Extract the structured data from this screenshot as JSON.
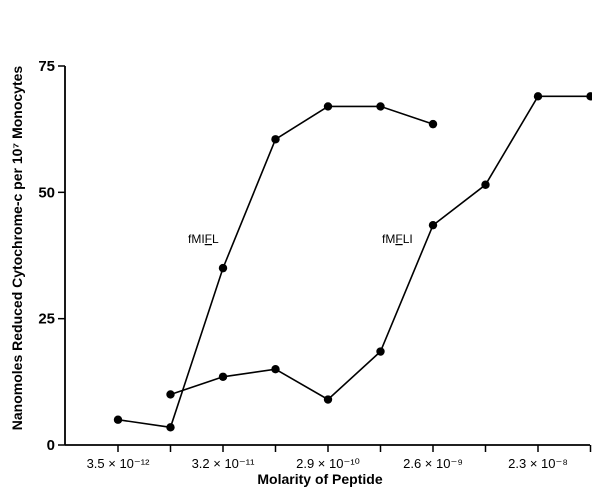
{
  "chart_data": {
    "type": "line",
    "xlabel": "Molarity of Peptide",
    "ylabel": "Nanomoles Reduced Cytochrome-c per 10⁷ Monocytes",
    "ylim": [
      0,
      75
    ],
    "yticks": [
      0,
      25,
      50,
      75
    ],
    "x_positions": [
      1,
      2,
      3,
      4,
      5,
      6,
      7,
      8,
      9,
      10
    ],
    "x_tick_labels": [
      {
        "pos": 1,
        "label": "3.5 × 10⁻¹²"
      },
      {
        "pos": 3,
        "label": "3.2 × 10⁻¹¹"
      },
      {
        "pos": 5,
        "label": "2.9 × 10⁻¹⁰"
      },
      {
        "pos": 7,
        "label": "2.6 × 10⁻⁹"
      },
      {
        "pos": 9,
        "label": "2.3 × 10⁻⁸"
      }
    ],
    "grid": false,
    "series": [
      {
        "name": "fMIFL",
        "label_html": "fMI<u>F</u>L",
        "x": [
          1,
          2,
          3,
          4,
          5,
          6,
          7
        ],
        "values": [
          5,
          3.5,
          35,
          60.5,
          67,
          67,
          63.5
        ]
      },
      {
        "name": "fMFLI",
        "label_html": "fM<u>F</u>LI",
        "x": [
          2,
          3,
          4,
          5,
          6,
          7,
          8,
          9,
          10
        ],
        "values": [
          10,
          13.5,
          15,
          9,
          18.5,
          43.5,
          51.5,
          69,
          69
        ]
      }
    ]
  }
}
